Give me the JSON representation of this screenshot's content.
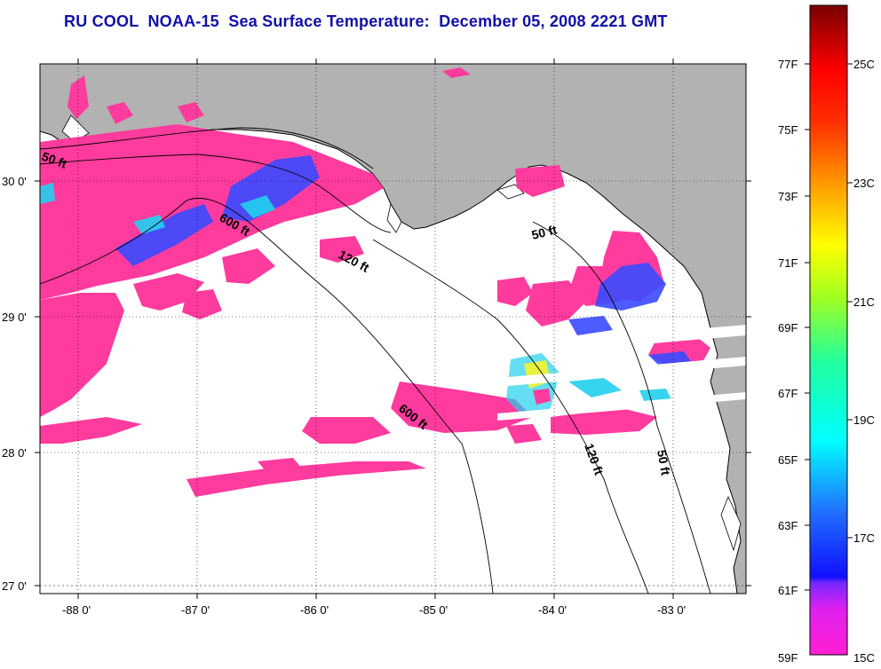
{
  "title": "RU COOL  NOAA-15  Sea Surface Temperature:  December 05, 2008 2221 GMT",
  "map": {
    "latitude_labels": [
      "30 0'",
      "29 0'",
      "28 0'",
      "27 0'"
    ],
    "longitude_labels": [
      "-88 0'",
      "-87 0'",
      "-86 0'",
      "-85 0'",
      "-84 0'",
      "-83 0'"
    ],
    "contour_labels": [
      "50 ft",
      "600 ft",
      "120 ft",
      "50 ft",
      "600 ft",
      "120 ft",
      "50 ft"
    ],
    "colors": {
      "land": "#b2b2b2",
      "ocean_cloud": "#ffffff",
      "sst_dominant": "#ff3b9e",
      "sst_mid": "#3a4bff",
      "sst_warm": "#22d0ee"
    }
  },
  "colorbar": {
    "fahrenheit_labels": [
      "77F",
      "75F",
      "73F",
      "71F",
      "69F",
      "67F",
      "65F",
      "63F",
      "61F",
      "59F"
    ],
    "celsius_labels": [
      "25C",
      "23C",
      "21C",
      "19C",
      "17C",
      "15C"
    ],
    "range_c": [
      15,
      26.3
    ]
  }
}
